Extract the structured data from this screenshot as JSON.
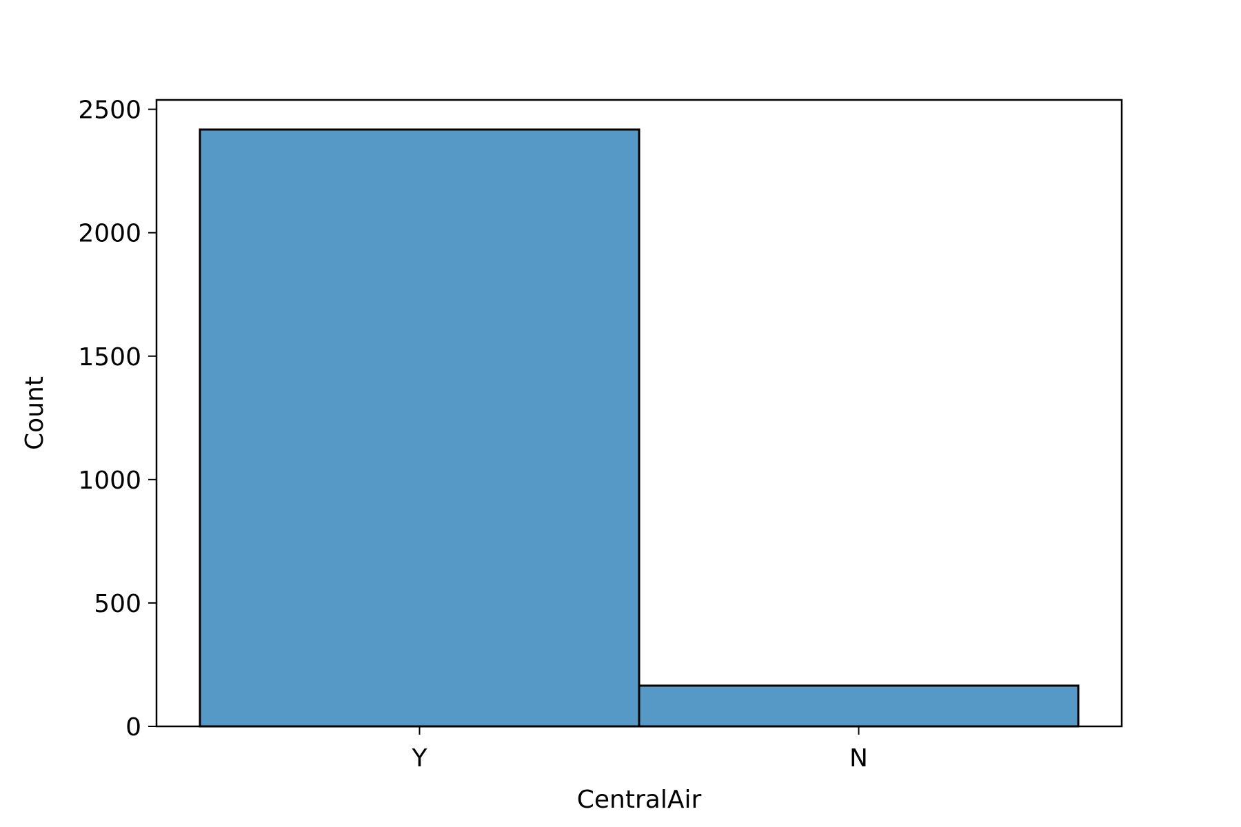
{
  "chart_data": {
    "type": "bar",
    "categories": [
      "Y",
      "N"
    ],
    "values": [
      2418,
      165
    ],
    "xlabel": "CentralAir",
    "ylabel": "Count",
    "yticks": [
      0,
      500,
      1000,
      1500,
      2000,
      2500
    ],
    "ylim": [
      0,
      2538
    ],
    "grid": false,
    "bar_color": "#5799C6",
    "edge_color": "#000000"
  }
}
